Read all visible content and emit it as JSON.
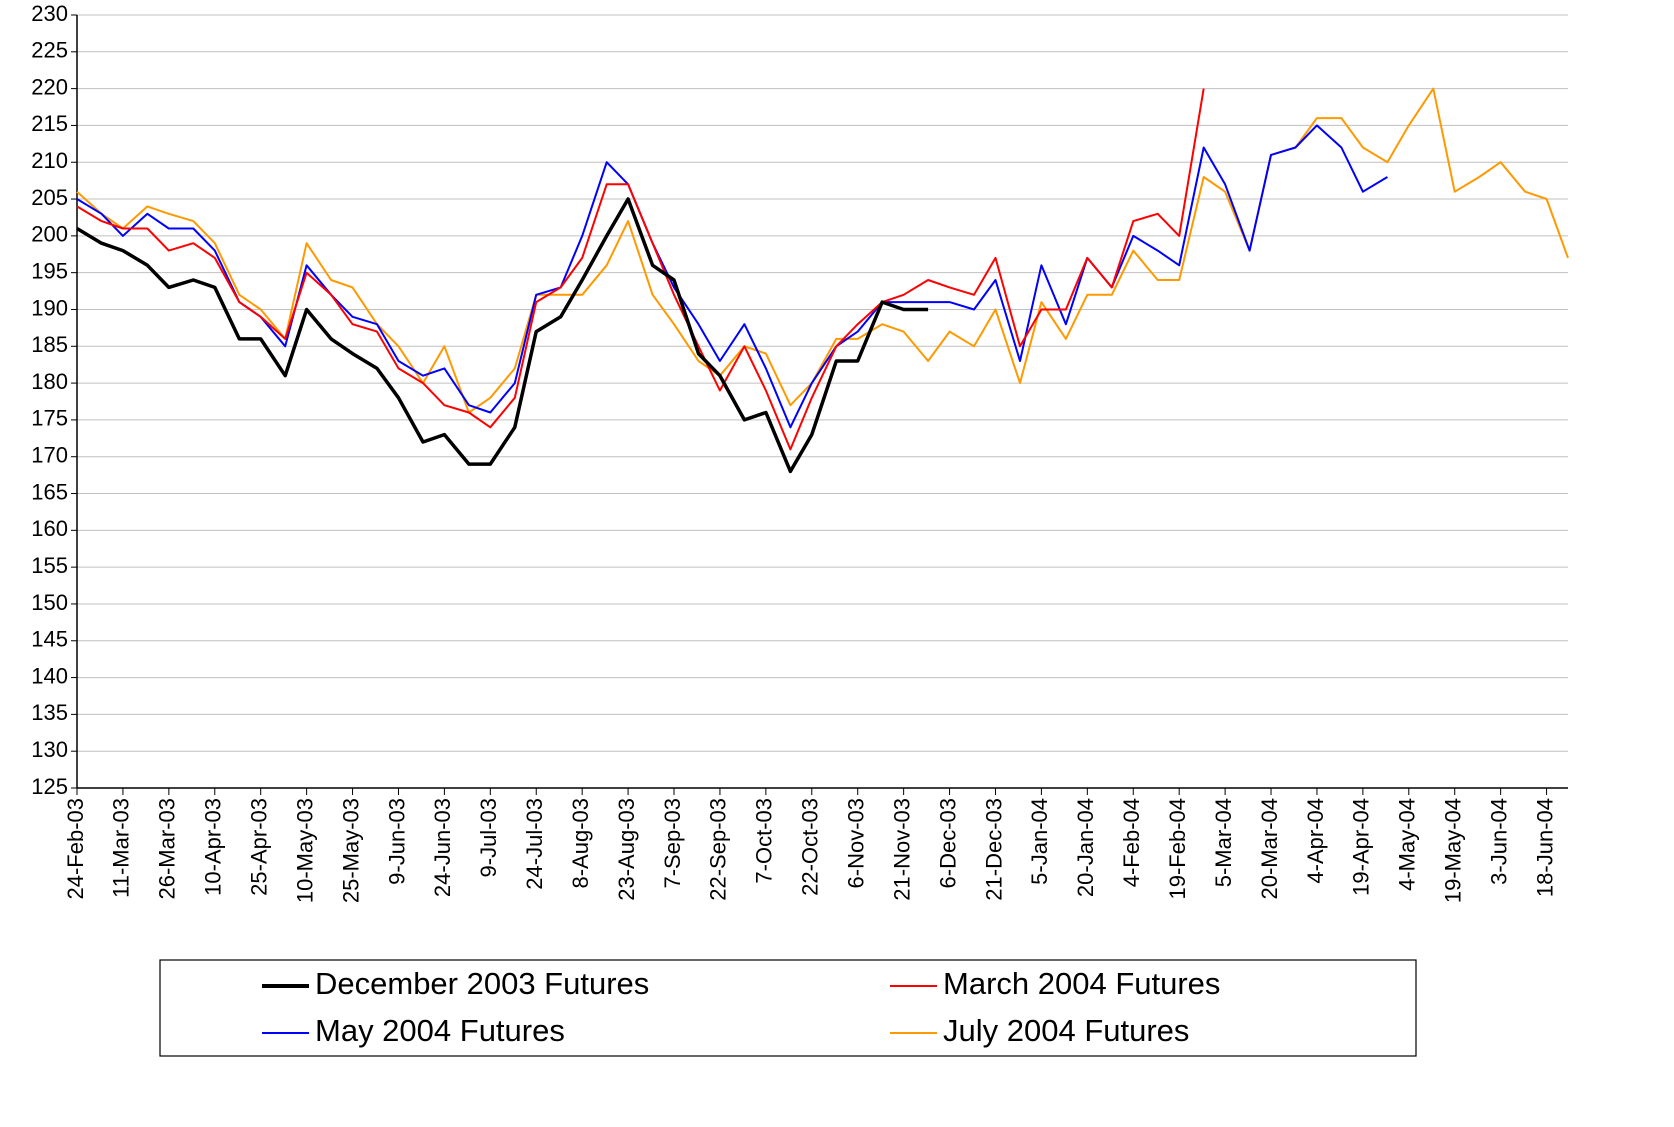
{
  "chart_data": {
    "type": "line",
    "x": [
      "24-Feb-03",
      "4-Mar-03",
      "11-Mar-03",
      "19-Mar-03",
      "26-Mar-03",
      "3-Apr-03",
      "10-Apr-03",
      "18-Apr-03",
      "25-Apr-03",
      "3-May-03",
      "10-May-03",
      "18-May-03",
      "25-May-03",
      "2-Jun-03",
      "9-Jun-03",
      "17-Jun-03",
      "24-Jun-03",
      "2-Jul-03",
      "9-Jul-03",
      "17-Jul-03",
      "24-Jul-03",
      "1-Aug-03",
      "8-Aug-03",
      "16-Aug-03",
      "23-Aug-03",
      "31-Aug-03",
      "7-Sep-03",
      "15-Sep-03",
      "22-Sep-03",
      "30-Sep-03",
      "7-Oct-03",
      "15-Oct-03",
      "22-Oct-03",
      "30-Oct-03",
      "6-Nov-03",
      "14-Nov-03",
      "21-Nov-03",
      "29-Nov-03",
      "6-Dec-03",
      "14-Dec-03",
      "21-Dec-03",
      "29-Dec-03",
      "5-Jan-04",
      "13-Jan-04",
      "20-Jan-04",
      "28-Jan-04",
      "4-Feb-04",
      "12-Feb-04",
      "19-Feb-04",
      "27-Feb-04",
      "5-Mar-04",
      "13-Mar-04",
      "20-Mar-04",
      "28-Mar-04",
      "4-Apr-04",
      "12-Apr-04",
      "19-Apr-04",
      "27-Apr-04",
      "4-May-04",
      "12-May-04",
      "19-May-04",
      "27-May-04",
      "3-Jun-04",
      "11-Jun-04",
      "18-Jun-04",
      "25-Jun-04"
    ],
    "series": [
      {
        "name": "December 2003 Futures",
        "color": "#000000",
        "values": [
          201,
          199,
          198,
          196,
          193,
          194,
          193,
          186,
          186,
          181,
          190,
          186,
          184,
          182,
          178,
          172,
          173,
          169,
          169,
          174,
          187,
          189,
          194,
          200,
          205,
          196,
          194,
          184,
          181,
          175,
          176,
          168,
          173,
          183,
          183,
          191,
          190,
          190,
          null,
          null,
          null,
          null,
          null,
          null,
          null,
          null,
          null,
          null,
          null,
          null,
          null,
          null,
          null,
          null,
          null,
          null,
          null,
          null,
          null,
          null,
          null,
          null,
          null,
          null,
          null,
          null
        ]
      },
      {
        "name": "March 2004 Futures",
        "color": "#ff0000",
        "values": [
          204,
          202,
          201,
          201,
          198,
          199,
          197,
          191,
          189,
          186,
          195,
          192,
          188,
          187,
          182,
          180,
          177,
          176,
          174,
          178,
          191,
          193,
          197,
          207,
          207,
          199,
          192,
          185,
          179,
          185,
          179,
          171,
          178,
          185,
          188,
          191,
          192,
          194,
          193,
          192,
          197,
          185,
          190,
          190,
          197,
          193,
          202,
          203,
          200,
          220,
          null,
          null,
          null,
          null,
          null,
          null,
          null,
          null,
          null,
          null,
          null,
          null,
          null,
          null,
          null,
          null
        ]
      },
      {
        "name": "May 2004 Futures",
        "color": "#0000ff",
        "values": [
          205,
          203,
          200,
          203,
          201,
          201,
          198,
          191,
          189,
          185,
          196,
          192,
          189,
          188,
          183,
          181,
          182,
          177,
          176,
          180,
          192,
          193,
          200,
          210,
          207,
          199,
          193,
          188,
          183,
          188,
          182,
          174,
          180,
          185,
          187,
          191,
          191,
          191,
          191,
          190,
          194,
          183,
          196,
          188,
          197,
          193,
          200,
          198,
          196,
          212,
          207,
          198,
          211,
          212,
          215,
          212,
          206,
          208,
          null,
          null,
          null,
          null,
          null,
          null,
          null,
          null
        ]
      },
      {
        "name": "July 2004 Futures",
        "color": "#ff9900",
        "values": [
          206,
          203,
          201,
          204,
          203,
          202,
          199,
          192,
          190,
          186,
          199,
          194,
          193,
          188,
          185,
          180,
          185,
          176,
          178,
          182,
          192,
          192,
          192,
          196,
          202,
          192,
          188,
          183,
          181,
          185,
          184,
          177,
          180,
          186,
          186,
          188,
          187,
          183,
          187,
          185,
          190,
          180,
          191,
          186,
          192,
          192,
          198,
          194,
          194,
          208,
          206,
          198,
          211,
          212,
          216,
          216,
          212,
          210,
          215,
          220,
          206,
          208,
          210,
          206,
          205,
          197
        ]
      }
    ],
    "xlim": [
      "24-Feb-03",
      "25-Jun-04"
    ],
    "xticks": [
      "24-Feb-03",
      "11-Mar-03",
      "26-Mar-03",
      "10-Apr-03",
      "25-Apr-03",
      "10-May-03",
      "25-May-03",
      "9-Jun-03",
      "24-Jun-03",
      "9-Jul-03",
      "24-Jul-03",
      "8-Aug-03",
      "23-Aug-03",
      "7-Sep-03",
      "22-Sep-03",
      "7-Oct-03",
      "22-Oct-03",
      "6-Nov-03",
      "21-Nov-03",
      "6-Dec-03",
      "21-Dec-03",
      "5-Jan-04",
      "20-Jan-04",
      "4-Feb-04",
      "19-Feb-04",
      "5-Mar-04",
      "20-Mar-04",
      "4-Apr-04",
      "19-Apr-04",
      "4-May-04",
      "19-May-04",
      "3-Jun-04",
      "18-Jun-04"
    ],
    "ylim": [
      125,
      230
    ],
    "yticks": [
      125,
      130,
      135,
      140,
      145,
      150,
      155,
      160,
      165,
      170,
      175,
      180,
      185,
      190,
      195,
      200,
      205,
      210,
      215,
      220,
      225,
      230
    ],
    "grid": true,
    "legend": "bottom"
  }
}
